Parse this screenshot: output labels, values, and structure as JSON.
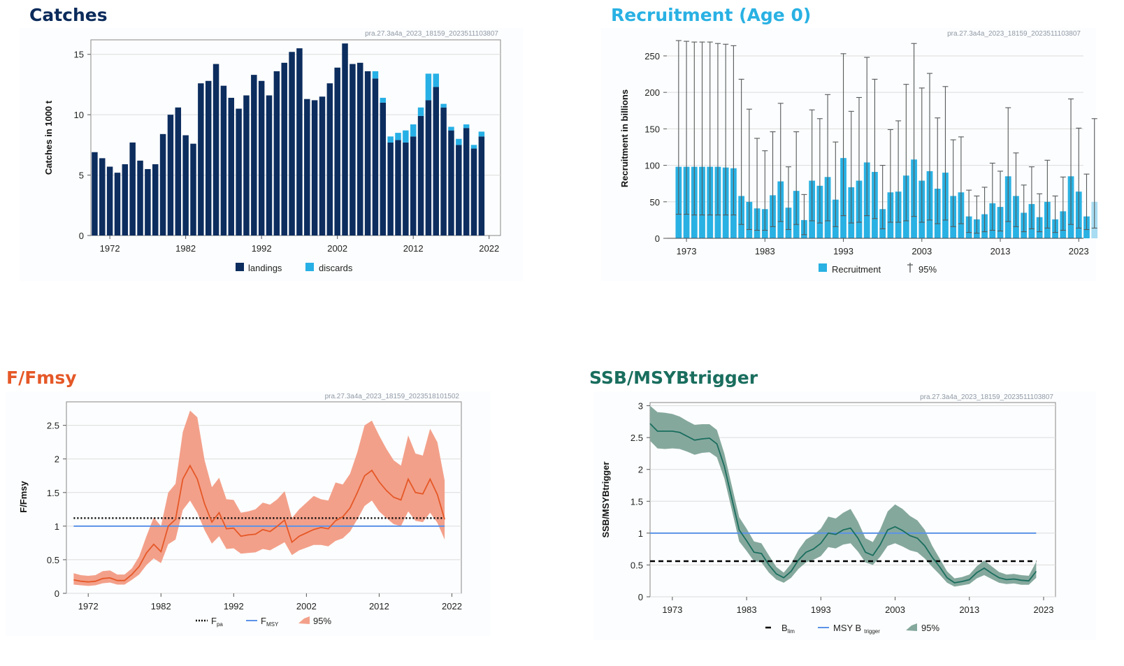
{
  "colors": {
    "landings": "#0c2d5e",
    "discards": "#27b0e6",
    "recruitment": "#29b1e3",
    "recruitment_last": "#a8dcf2",
    "whisker": "#555a5a",
    "f_line": "#e55827",
    "f_band": "#f3a08a",
    "ssb_line": "#1a6e5e",
    "ssb_band": "#85a89d",
    "ref_blue": "#5b93e8",
    "ref_black": "#000000",
    "title_catches": "#0b2b5b",
    "title_recruitment": "#29b1e3",
    "title_f": "#e55827",
    "title_ssb": "#1a6e5e",
    "grid": "#dcdcdc",
    "frame": "#888888",
    "id_text": "#909aa6"
  },
  "chart_data": [
    {
      "type": "bar",
      "title": "Catches",
      "id_label": "pra.27.3a4a_2023_18159_2023511103807",
      "ylabel": "Catches in 1000 t",
      "xlabel": "",
      "ylim": [
        0,
        16.2
      ],
      "xlim": [
        1969.5,
        2023.5
      ],
      "yticks": [
        0,
        5,
        10,
        15
      ],
      "xticks": [
        1972,
        1982,
        1992,
        2002,
        2012,
        2022
      ],
      "grid": true,
      "legend": "bottom",
      "x_start": 1970,
      "series": [
        {
          "name": "landings",
          "values": [
            6.9,
            6.4,
            5.7,
            5.2,
            5.9,
            7.7,
            6.2,
            5.5,
            5.9,
            8.4,
            10.0,
            10.6,
            8.3,
            7.6,
            12.6,
            12.8,
            14.2,
            12.4,
            11.4,
            10.5,
            11.6,
            13.3,
            12.8,
            11.6,
            13.6,
            14.3,
            15.2,
            15.5,
            11.3,
            11.2,
            11.5,
            12.6,
            13.9,
            15.9,
            14.2,
            14.3,
            13.6,
            13.0,
            11.0,
            7.7,
            7.9,
            7.7,
            8.2,
            9.9,
            11.2,
            12.3,
            10.6,
            8.7,
            7.5,
            8.9,
            7.2,
            8.2
          ]
        },
        {
          "name": "discards",
          "values": [
            0,
            0,
            0,
            0,
            0,
            0,
            0,
            0,
            0,
            0,
            0,
            0,
            0,
            0,
            0,
            0,
            0,
            0,
            0,
            0,
            0,
            0,
            0,
            0,
            0,
            0,
            0,
            0,
            0,
            0,
            0,
            0,
            0,
            0,
            0,
            0,
            0,
            0.6,
            0.4,
            0.5,
            0.6,
            1.0,
            1.0,
            0.7,
            2.2,
            1.1,
            0.3,
            0.3,
            0.5,
            0.3,
            0.3,
            0.4
          ]
        }
      ]
    },
    {
      "type": "bar",
      "title": "Recruitment (Age 0)",
      "id_label": "pra.27.3a4a_2023_18159_2023511103807",
      "ylabel": "Recruitment in billions",
      "xlabel": "",
      "ylim": [
        0,
        272
      ],
      "xlim": [
        1970.5,
        2023.6
      ],
      "yticks": [
        0,
        50,
        100,
        150,
        200,
        250
      ],
      "xticks": [
        1973,
        1983,
        1993,
        2003,
        2013,
        2023
      ],
      "grid": true,
      "legend": "bottom",
      "x_start": 1973,
      "series": [
        {
          "name": "Recruitment",
          "values": [
            98,
            98,
            98,
            98,
            98,
            98,
            97,
            96,
            58,
            50,
            41,
            40,
            59,
            78,
            42,
            65,
            25,
            79,
            72,
            84,
            53,
            110,
            70,
            79,
            104,
            91,
            40,
            63,
            64,
            86,
            108,
            79,
            92,
            68,
            90,
            58,
            63,
            30,
            26,
            33,
            48,
            43,
            85,
            58,
            35,
            47,
            29,
            50,
            26,
            37,
            85,
            64,
            30,
            50
          ]
        },
        {
          "name": "95%",
          "upper": [
            271,
            270,
            269,
            269,
            269,
            267,
            266,
            264,
            218,
            177,
            137,
            120,
            146,
            185,
            98,
            146,
            60,
            176,
            164,
            197,
            132,
            253,
            174,
            193,
            248,
            218,
            100,
            149,
            161,
            211,
            267,
            206,
            226,
            165,
            208,
            135,
            139,
            66,
            58,
            70,
            103,
            92,
            179,
            117,
            73,
            98,
            61,
            107,
            58,
            84,
            191,
            151,
            88,
            164
          ],
          "lower": [
            33,
            33,
            32,
            32,
            32,
            32,
            32,
            32,
            19,
            12,
            11,
            11,
            16,
            23,
            12,
            19,
            5,
            24,
            21,
            24,
            16,
            31,
            21,
            22,
            31,
            27,
            13,
            22,
            22,
            24,
            30,
            22,
            25,
            20,
            25,
            16,
            20,
            8,
            7,
            9,
            11,
            10,
            23,
            16,
            9,
            13,
            9,
            14,
            8,
            11,
            19,
            14,
            12,
            14
          ]
        }
      ]
    },
    {
      "type": "line",
      "title": "F/Fmsy",
      "id_label": "pra.27.3a4a_2023_18159_2023518101502",
      "ylabel": "F/Fmsy",
      "xlabel": "",
      "ylim": [
        0,
        2.85
      ],
      "xlim": [
        1969.0,
        2023.3
      ],
      "yticks": [
        0,
        0.5,
        1,
        1.5,
        2,
        2.5
      ],
      "xticks": [
        1972,
        1982,
        1992,
        2002,
        2012,
        2022
      ],
      "grid": true,
      "legend": "bottom",
      "x_start": 1970,
      "series": [
        {
          "name": "",
          "values": [
            0.2,
            0.18,
            0.17,
            0.18,
            0.22,
            0.23,
            0.19,
            0.19,
            0.28,
            0.4,
            0.6,
            0.73,
            0.62,
            1.0,
            1.1,
            1.7,
            1.9,
            1.7,
            1.33,
            1.06,
            1.2,
            0.96,
            0.97,
            0.85,
            0.87,
            0.88,
            0.95,
            0.92,
            1.0,
            1.09,
            0.76,
            0.85,
            0.9,
            0.95,
            0.98,
            0.96,
            1.08,
            1.14,
            1.27,
            1.5,
            1.75,
            1.83,
            1.66,
            1.53,
            1.43,
            1.39,
            1.7,
            1.5,
            1.48,
            1.7,
            1.47,
            1.1
          ]
        },
        {
          "name": "95%",
          "upper": [
            0.3,
            0.27,
            0.26,
            0.27,
            0.33,
            0.34,
            0.28,
            0.28,
            0.37,
            0.55,
            0.85,
            1.13,
            1.0,
            1.5,
            1.63,
            2.4,
            2.72,
            2.62,
            1.98,
            1.58,
            1.72,
            1.4,
            1.39,
            1.2,
            1.22,
            1.25,
            1.35,
            1.32,
            1.4,
            1.52,
            1.12,
            1.25,
            1.35,
            1.45,
            1.4,
            1.38,
            1.65,
            1.62,
            1.78,
            2.1,
            2.5,
            2.57,
            2.35,
            2.15,
            1.98,
            1.9,
            2.35,
            2.08,
            2.05,
            2.45,
            2.25,
            1.68
          ],
          "lower": [
            0.13,
            0.12,
            0.11,
            0.12,
            0.15,
            0.16,
            0.13,
            0.13,
            0.2,
            0.28,
            0.42,
            0.52,
            0.45,
            0.73,
            0.8,
            1.24,
            1.38,
            1.2,
            0.94,
            0.74,
            0.85,
            0.66,
            0.67,
            0.59,
            0.6,
            0.61,
            0.66,
            0.64,
            0.7,
            0.76,
            0.57,
            0.64,
            0.68,
            0.72,
            0.72,
            0.7,
            0.78,
            0.82,
            0.92,
            1.1,
            1.3,
            1.38,
            1.22,
            1.12,
            1.03,
            1.0,
            1.22,
            1.08,
            1.06,
            1.2,
            1.05,
            0.8
          ]
        }
      ],
      "reference_lines": [
        {
          "name": "F_pa",
          "y": 1.12,
          "style": "dotted"
        },
        {
          "name": "F_MSY",
          "y": 1.0,
          "style": "solid"
        }
      ]
    },
    {
      "type": "line",
      "title": "SSB/MSYBtrigger",
      "id_label": "pra.27.3a4a_2023_18159_2023511103807",
      "ylabel": "SSB/MSYBtrigger",
      "xlabel": "",
      "ylim": [
        0,
        3.05
      ],
      "xlim": [
        1970.0,
        2024.6
      ],
      "yticks": [
        0,
        0.5,
        1,
        1.5,
        2,
        2.5,
        3
      ],
      "xticks": [
        1973,
        1983,
        1993,
        2003,
        2013,
        2023
      ],
      "grid": true,
      "legend": "bottom",
      "x_start": 1970,
      "series": [
        {
          "name": "",
          "values": [
            2.72,
            2.6,
            2.6,
            2.6,
            2.58,
            2.52,
            2.46,
            2.48,
            2.49,
            2.4,
            2.05,
            1.55,
            1.05,
            0.88,
            0.7,
            0.68,
            0.5,
            0.36,
            0.3,
            0.4,
            0.58,
            0.7,
            0.75,
            0.84,
            1.0,
            0.98,
            1.05,
            1.08,
            0.92,
            0.7,
            0.65,
            0.82,
            1.05,
            1.1,
            1.04,
            0.96,
            0.92,
            0.8,
            0.62,
            0.47,
            0.3,
            0.22,
            0.24,
            0.27,
            0.38,
            0.45,
            0.37,
            0.3,
            0.27,
            0.28,
            0.26,
            0.25,
            0.4
          ]
        },
        {
          "name": "95%",
          "upper": [
            3.0,
            2.9,
            2.89,
            2.87,
            2.83,
            2.76,
            2.7,
            2.71,
            2.71,
            2.62,
            2.25,
            1.75,
            1.25,
            1.07,
            0.87,
            0.84,
            0.65,
            0.47,
            0.38,
            0.52,
            0.74,
            0.9,
            0.97,
            1.07,
            1.26,
            1.23,
            1.32,
            1.38,
            1.18,
            0.92,
            0.86,
            1.06,
            1.34,
            1.45,
            1.38,
            1.27,
            1.2,
            1.05,
            0.8,
            0.6,
            0.4,
            0.29,
            0.31,
            0.35,
            0.48,
            0.57,
            0.48,
            0.39,
            0.35,
            0.36,
            0.34,
            0.33,
            0.55
          ],
          "lower": [
            2.45,
            2.33,
            2.32,
            2.33,
            2.32,
            2.28,
            2.23,
            2.26,
            2.27,
            2.19,
            1.86,
            1.37,
            0.87,
            0.72,
            0.56,
            0.54,
            0.38,
            0.27,
            0.22,
            0.3,
            0.44,
            0.54,
            0.58,
            0.64,
            0.78,
            0.76,
            0.82,
            0.84,
            0.71,
            0.54,
            0.5,
            0.63,
            0.8,
            0.84,
            0.79,
            0.73,
            0.7,
            0.6,
            0.47,
            0.35,
            0.22,
            0.16,
            0.18,
            0.2,
            0.29,
            0.34,
            0.28,
            0.22,
            0.2,
            0.21,
            0.19,
            0.19,
            0.3
          ]
        }
      ],
      "reference_lines": [
        {
          "name": "B_lim",
          "y": 0.56,
          "style": "dashed"
        },
        {
          "name": "MSY B trigger",
          "y": 1.0,
          "style": "solid"
        }
      ]
    }
  ],
  "legends": {
    "catches": {
      "landings": "landings",
      "discards": "discards"
    },
    "recruitment": {
      "bars": "Recruitment",
      "ci": "95%"
    },
    "f": {
      "fpa": "F",
      "fpa_sub": "pa",
      "fmsy": "F",
      "fmsy_sub": "MSY",
      "ci": "95%"
    },
    "ssb": {
      "blim": "B",
      "blim_sub": "lim",
      "msy": "MSY B",
      "msy_sub": "trigger",
      "ci": "95%"
    }
  }
}
